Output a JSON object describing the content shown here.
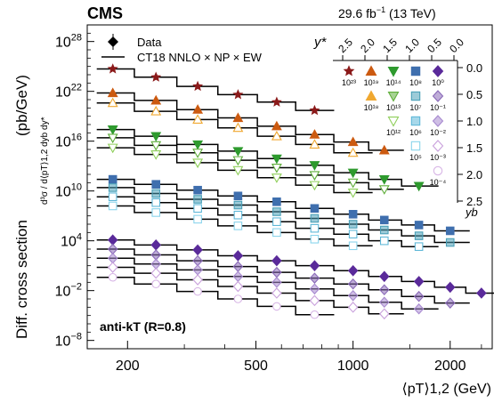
{
  "header": {
    "experiment": "CMS",
    "luminosity_prefix": "29.6 fb",
    "luminosity_exp": "−1",
    "energy": "(13 TeV)"
  },
  "colors": {
    "star": "#8b1a1a",
    "tri_up": "#cc5a10",
    "tri_up_open": "#f0a830",
    "tri_down": "#2e9a2e",
    "tri_down_open": "#8fcf5a",
    "sq": "#3f6fae",
    "sq_half": "#4aa0b8",
    "sq_open": "#5fb8d8",
    "dia": "#5a2a9a",
    "dia_half": "#8a6ab8",
    "dia_open": "#c9a0dc",
    "theory": "#000000"
  },
  "chart_data": {
    "type": "scatter",
    "title": "",
    "ylabel": "Diff. cross section",
    "ylabel_unit": "(pb/GeV)",
    "ylabel_expr": "d³σ / d⟨pT⟩1,2 dyb dy*",
    "xlabel": "⟨pT⟩1,2 (GeV)",
    "x_scale": "log",
    "y_scale": "log",
    "xlim": [
      150,
      2700
    ],
    "ylim_exp": [
      -9,
      30
    ],
    "x_ticks": [
      200,
      500,
      1000,
      2000
    ],
    "y_tick_exponents": [
      -8,
      -2,
      4,
      10,
      16,
      22,
      28
    ],
    "legend": {
      "data_label": "Data",
      "theory_label": "CT18 NNLO × NP × EW",
      "placement": "top-left"
    },
    "algo_label": "anti-kT (R=0.8)",
    "inset": {
      "ystar_label": "y*",
      "yb_label": "yb",
      "ystar_ticks": [
        "2.5",
        "2.0",
        "1.5",
        "1.0",
        "0.5",
        "0.0"
      ],
      "yb_ticks": [
        "0.0",
        "0.5",
        "1.0",
        "1.5",
        "2.0",
        "2.5"
      ],
      "scale_labels": [
        {
          "text": "10²³",
          "marker": "star"
        },
        {
          "text": "10¹⁹",
          "marker": "tri_up"
        },
        {
          "text": "10¹⁴",
          "marker": "tri_down"
        },
        {
          "text": "10⁸",
          "marker": "sq"
        },
        {
          "text": "10⁰",
          "marker": "dia"
        },
        {
          "text": "10¹⁸",
          "marker": "tri_up_open"
        },
        {
          "text": "10¹³",
          "marker": "tri_down_open"
        },
        {
          "text": "10⁷",
          "marker": "sq_half"
        },
        {
          "text": "10⁻¹",
          "marker": "dia_half"
        },
        {
          "text": "10¹²",
          "marker": "tri_down_open2"
        },
        {
          "text": "10⁶",
          "marker": "sq_open"
        },
        {
          "text": "10⁻²",
          "marker": "dia_half2"
        },
        {
          "text": "10⁵",
          "marker": "sq_open2"
        },
        {
          "text": "10⁻³",
          "marker": "dia_open"
        },
        {
          "text": "10⁻⁴",
          "marker": "dia_open2"
        }
      ]
    },
    "series": [
      {
        "name": "10²³",
        "marker": "star",
        "color": "#8b1a1a",
        "filled": true,
        "x": [
          180,
          245,
          330,
          440,
          580,
          760
        ],
        "logy": [
          24.7,
          23.7,
          22.6,
          21.6,
          20.7,
          19.7
        ]
      },
      {
        "name": "10¹⁹",
        "marker": "tri_up",
        "color": "#cc5a10",
        "filled": true,
        "x": [
          180,
          245,
          330,
          440,
          580,
          760,
          1000,
          1250
        ],
        "logy": [
          21.8,
          20.9,
          19.8,
          18.8,
          17.8,
          16.8,
          15.9,
          14.9
        ]
      },
      {
        "name": "10¹⁸",
        "marker": "tri_up",
        "color": "#f0a830",
        "filled": false,
        "x": [
          180,
          245,
          330,
          440,
          580,
          760,
          1000
        ],
        "logy": [
          20.6,
          19.6,
          18.6,
          17.6,
          16.6,
          15.6,
          14.6
        ]
      },
      {
        "name": "10¹⁴",
        "marker": "tri_down",
        "color": "#2e9a2e",
        "filled": true,
        "x": [
          180,
          245,
          330,
          440,
          580,
          760,
          1000,
          1250,
          1600
        ],
        "logy": [
          17.4,
          16.6,
          15.6,
          14.8,
          13.9,
          13.1,
          12.2,
          11.4,
          10.6
        ]
      },
      {
        "name": "10¹³",
        "marker": "tri_down",
        "color": "#5fae3a",
        "filled": false,
        "x": [
          180,
          245,
          330,
          440,
          580,
          760,
          1000,
          1250
        ],
        "logy": [
          16.4,
          15.5,
          14.6,
          13.7,
          12.8,
          11.9,
          11.0,
          10.2
        ]
      },
      {
        "name": "10¹²",
        "marker": "tri_down",
        "color": "#8fcf5a",
        "filled": false,
        "x": [
          180,
          245,
          330,
          440,
          580,
          760,
          1000
        ],
        "logy": [
          15.2,
          14.4,
          13.4,
          12.5,
          11.6,
          10.7,
          9.8
        ]
      },
      {
        "name": "10⁸",
        "marker": "sq",
        "color": "#3f6fae",
        "filled": true,
        "x": [
          180,
          245,
          330,
          440,
          580,
          760,
          1000,
          1250,
          1600,
          2000
        ],
        "logy": [
          11.4,
          10.8,
          10.1,
          9.4,
          8.7,
          7.9,
          7.2,
          6.5,
          5.9,
          5.2
        ]
      },
      {
        "name": "10⁷",
        "marker": "sq",
        "color": "#4aa0b8",
        "filled": "half",
        "x": [
          180,
          245,
          330,
          440,
          580,
          760,
          1000,
          1250,
          1600,
          2000
        ],
        "logy": [
          10.4,
          9.7,
          9.0,
          8.3,
          7.5,
          6.7,
          6.0,
          5.3,
          4.6,
          3.8
        ]
      },
      {
        "name": "10⁶",
        "marker": "sq",
        "color": "#5fb8d8",
        "filled": false,
        "x": [
          180,
          245,
          330,
          440,
          580,
          760,
          1000,
          1250,
          1600
        ],
        "logy": [
          9.3,
          8.6,
          7.9,
          7.1,
          6.3,
          5.5,
          4.8,
          4.0,
          3.3
        ]
      },
      {
        "name": "10⁵",
        "marker": "sq",
        "color": "#8ad4ec",
        "filled": false,
        "x": [
          180,
          245,
          330,
          440,
          580,
          760,
          1000
        ],
        "logy": [
          8.2,
          7.4,
          6.6,
          5.8,
          5.0,
          4.2,
          3.4
        ]
      },
      {
        "name": "10⁰",
        "marker": "dia",
        "color": "#5a2a9a",
        "filled": true,
        "x": [
          180,
          245,
          330,
          440,
          580,
          760,
          1000,
          1250,
          1600,
          2000,
          2500
        ],
        "logy": [
          4.1,
          3.5,
          2.9,
          2.2,
          1.6,
          1.0,
          0.4,
          -0.3,
          -0.9,
          -1.6,
          -2.3
        ]
      },
      {
        "name": "10⁻¹",
        "marker": "dia",
        "color": "#8a6ab8",
        "filled": "half",
        "x": [
          180,
          245,
          330,
          440,
          580,
          760,
          1000,
          1250,
          1600,
          2000
        ],
        "logy": [
          3.0,
          2.3,
          1.6,
          0.9,
          0.2,
          -0.5,
          -1.2,
          -1.9,
          -2.7,
          -3.5
        ]
      },
      {
        "name": "10⁻²",
        "marker": "dia",
        "color": "#a88ad0",
        "filled": "half",
        "x": [
          180,
          245,
          330,
          440,
          580,
          760,
          1000,
          1250,
          1600
        ],
        "logy": [
          1.9,
          1.2,
          0.5,
          -0.3,
          -1.0,
          -1.8,
          -2.6,
          -3.4,
          -4.2
        ]
      },
      {
        "name": "10⁻³",
        "marker": "dia",
        "color": "#c9a0dc",
        "filled": false,
        "x": [
          180,
          245,
          330,
          440,
          580,
          760,
          1000,
          1250
        ],
        "logy": [
          0.8,
          0.1,
          -0.7,
          -1.5,
          -2.3,
          -3.2,
          -4.0,
          -4.8
        ]
      },
      {
        "name": "10⁻⁴",
        "marker": "circ",
        "color": "#d8b6e6",
        "filled": false,
        "x": [
          180,
          245,
          330,
          440,
          580,
          760
        ],
        "logy": [
          -0.4,
          -1.2,
          -2.1,
          -3.0,
          -3.9,
          -4.9
        ]
      }
    ]
  }
}
